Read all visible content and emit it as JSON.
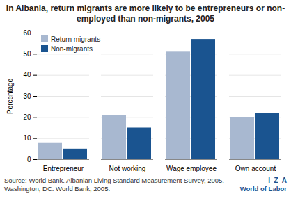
{
  "chart_data": {
    "type": "bar",
    "title": "In Albania, return migrants are more likely to be entrepreneurs or non-employed than non-migrants, 2005",
    "categories": [
      "Entrepreneur",
      "Not working",
      "Wage employee",
      "Own account"
    ],
    "series": [
      {
        "name": "Return migrants",
        "color": "#a8b8d0",
        "values": [
          8,
          21,
          51,
          20
        ]
      },
      {
        "name": "Non-migrants",
        "color": "#1a5490",
        "values": [
          5,
          15,
          57,
          22
        ]
      }
    ],
    "ylabel": "Percentage",
    "ylim": [
      0,
      60
    ],
    "yticks": [
      0,
      10,
      20,
      30,
      40,
      50,
      60
    ],
    "grid": true,
    "legend": "upper left",
    "annotations": [
      "Source: World Bank. Albanian Living Standard Measurement Survey, 2005. Washington, DC: World Bank, 2005.",
      "I  Z  A",
      "World of Labor"
    ]
  }
}
